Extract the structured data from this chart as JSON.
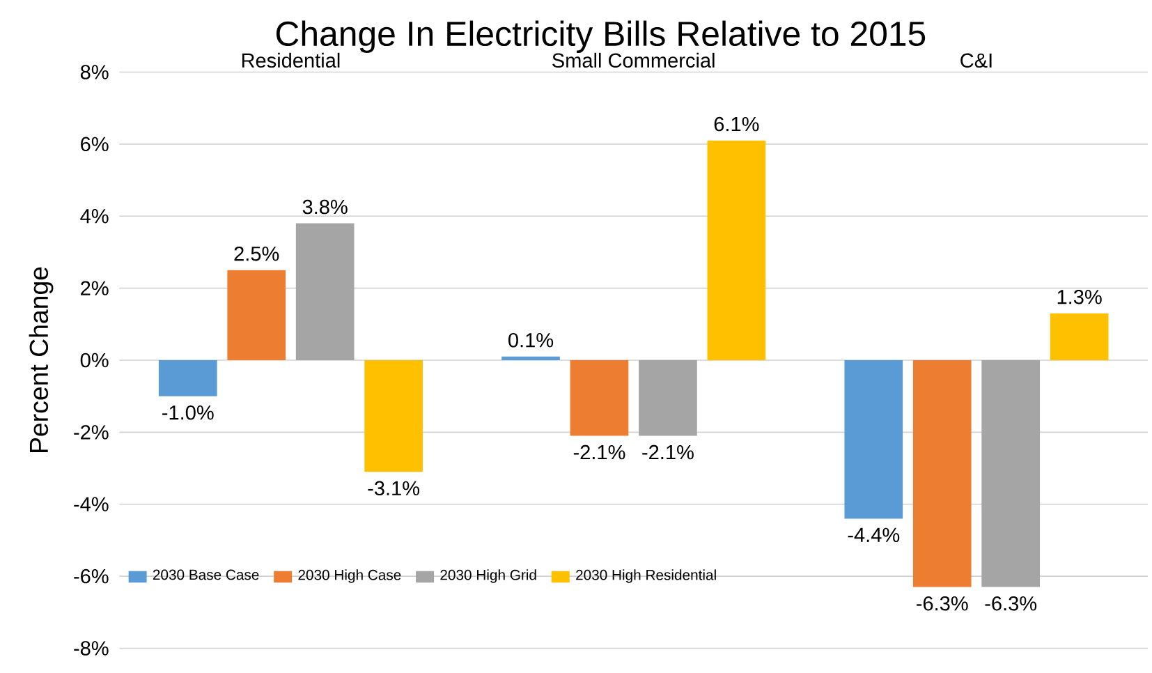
{
  "chart_data": {
    "type": "bar",
    "title": "Change In Electricity Bills Relative to 2015",
    "ylabel": "Percent Change",
    "categories": [
      "Residential",
      "Small Commercial",
      "C&I"
    ],
    "series": [
      {
        "name": "2030 Base Case",
        "color": "#5b9bd5",
        "values": [
          -1.0,
          0.1,
          -4.4
        ],
        "value_labels": [
          "-1.0%",
          "0.1%",
          "-4.4%"
        ]
      },
      {
        "name": "2030 High Case",
        "color": "#ed7d31",
        "values": [
          2.5,
          -2.1,
          -6.3
        ],
        "value_labels": [
          "2.5%",
          "-2.1%",
          "-6.3%"
        ]
      },
      {
        "name": "2030 High Grid",
        "color": "#a5a5a5",
        "values": [
          3.8,
          -2.1,
          -6.3
        ],
        "value_labels": [
          "3.8%",
          "-2.1%",
          "-6.3%"
        ]
      },
      {
        "name": "2030 High Residential",
        "color": "#ffc000",
        "values": [
          -3.1,
          6.1,
          1.3
        ],
        "value_labels": [
          "-3.1%",
          "6.1%",
          "1.3%"
        ]
      }
    ],
    "ylim": [
      -8,
      8
    ],
    "yticks": [
      {
        "value": -8,
        "label": "-8%"
      },
      {
        "value": -6,
        "label": "-6%"
      },
      {
        "value": -4,
        "label": "-4%"
      },
      {
        "value": -2,
        "label": "-2%"
      },
      {
        "value": 0,
        "label": "0%"
      },
      {
        "value": 2,
        "label": "2%"
      },
      {
        "value": 4,
        "label": "4%"
      },
      {
        "value": 6,
        "label": "6%"
      },
      {
        "value": 8,
        "label": "8%"
      }
    ],
    "grid": "y",
    "legend": "bottom left"
  }
}
